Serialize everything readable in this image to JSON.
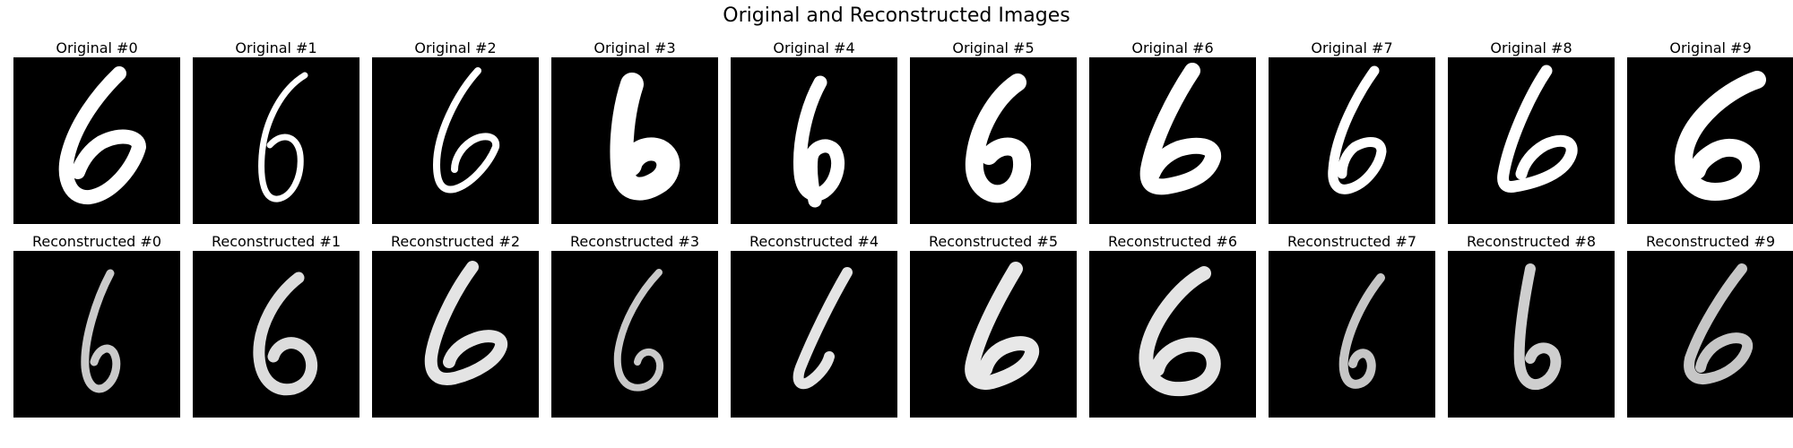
{
  "title": "Original and Reconstructed Images",
  "rows": [
    {
      "name": "original",
      "panels": [
        {
          "label": "Original #0"
        },
        {
          "label": "Original #1"
        },
        {
          "label": "Original #2"
        },
        {
          "label": "Original #3"
        },
        {
          "label": "Original #4"
        },
        {
          "label": "Original #5"
        },
        {
          "label": "Original #6"
        },
        {
          "label": "Original #7"
        },
        {
          "label": "Original #8"
        },
        {
          "label": "Original #9"
        }
      ]
    },
    {
      "name": "reconstructed",
      "panels": [
        {
          "label": "Reconstructed #0"
        },
        {
          "label": "Reconstructed #1"
        },
        {
          "label": "Reconstructed #2"
        },
        {
          "label": "Reconstructed #3"
        },
        {
          "label": "Reconstructed #4"
        },
        {
          "label": "Reconstructed #5"
        },
        {
          "label": "Reconstructed #6"
        },
        {
          "label": "Reconstructed #7"
        },
        {
          "label": "Reconstructed #8"
        },
        {
          "label": "Reconstructed #9"
        }
      ]
    }
  ]
}
